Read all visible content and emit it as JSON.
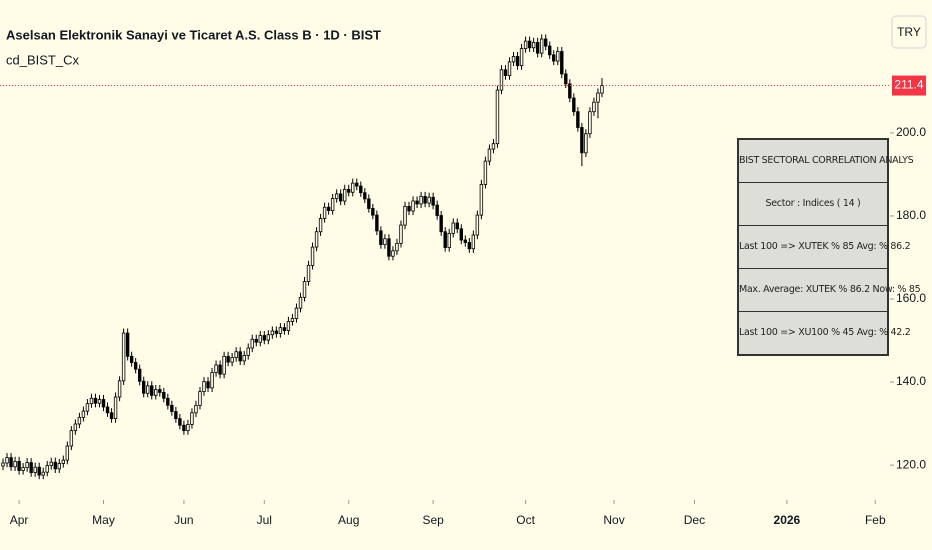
{
  "chart_data": {
    "type": "candlestick",
    "title": "Aselsan Elektronik Sanayi ve Ticaret A.S. Class B · 1D · BIST",
    "indicator": "cd_BIST_Cx",
    "currency": "TRY",
    "last_price": 211.4,
    "up_color": "#fffde8",
    "down_color": "#000000",
    "wick_color": "#000000",
    "price_line_color": "#f23645",
    "ylim": [
      111.6,
      232.0
    ],
    "yticks": [
      {
        "value": 120,
        "label": "120.0"
      },
      {
        "value": 140,
        "label": "140.0"
      },
      {
        "value": 160,
        "label": "160.0"
      },
      {
        "value": 180,
        "label": "180.0"
      },
      {
        "value": 200,
        "label": "200.0"
      }
    ],
    "xlim": [
      -0.75,
      220.65
    ],
    "xticks": [
      {
        "value": 4,
        "label": "Apr"
      },
      {
        "value": 25,
        "label": "May"
      },
      {
        "value": 45,
        "label": "Jun"
      },
      {
        "value": 65,
        "label": "Jul"
      },
      {
        "value": 86,
        "label": "Aug"
      },
      {
        "value": 107,
        "label": "Sep"
      },
      {
        "value": 130,
        "label": "Oct"
      },
      {
        "value": 152,
        "label": "Nov"
      },
      {
        "value": 172,
        "label": "Dec"
      },
      {
        "value": 195,
        "label": "2026"
      },
      {
        "value": 217,
        "label": "Feb"
      }
    ],
    "ohlc": [
      [
        119.8,
        121.6,
        118.8,
        120.5
      ],
      [
        120.5,
        122.9,
        119.5,
        121.8
      ],
      [
        121.8,
        122.9,
        118.6,
        119.6
      ],
      [
        119.6,
        122.0,
        118.6,
        120.9
      ],
      [
        120.9,
        122.0,
        117.7,
        118.7
      ],
      [
        118.7,
        120.5,
        117.7,
        119.4
      ],
      [
        119.4,
        121.7,
        118.4,
        120.6
      ],
      [
        120.6,
        121.7,
        117.2,
        118.2
      ],
      [
        118.2,
        120.6,
        117.2,
        119.5
      ],
      [
        119.5,
        120.6,
        116.6,
        117.6
      ],
      [
        117.6,
        119.4,
        116.6,
        118.3
      ],
      [
        118.3,
        121.0,
        117.3,
        119.9
      ],
      [
        119.9,
        121.8,
        118.9,
        120.7
      ],
      [
        120.7,
        121.8,
        118.1,
        119.1
      ],
      [
        119.1,
        121.5,
        118.1,
        120.4
      ],
      [
        120.4,
        122.3,
        119.4,
        121.2
      ],
      [
        121.2,
        125.7,
        120.2,
        124.6
      ],
      [
        124.6,
        129.4,
        123.6,
        128.3
      ],
      [
        128.3,
        131.0,
        127.3,
        129.9
      ],
      [
        129.9,
        132.6,
        128.9,
        131.5
      ],
      [
        131.5,
        134.1,
        130.5,
        133.0
      ],
      [
        133.0,
        135.9,
        132.0,
        134.8
      ],
      [
        134.8,
        137.2,
        133.8,
        136.1
      ],
      [
        136.1,
        137.2,
        133.9,
        134.9
      ],
      [
        134.9,
        136.9,
        133.9,
        135.8
      ],
      [
        135.8,
        136.9,
        133.0,
        134.0
      ],
      [
        134.0,
        135.1,
        131.6,
        132.6
      ],
      [
        132.6,
        133.7,
        130.2,
        131.2
      ],
      [
        131.2,
        137.5,
        130.2,
        136.4
      ],
      [
        136.4,
        141.4,
        135.4,
        140.3
      ],
      [
        140.3,
        152.9,
        139.3,
        151.8
      ],
      [
        151.8,
        152.9,
        145.2,
        146.2
      ],
      [
        146.2,
        147.3,
        143.7,
        144.7
      ],
      [
        144.7,
        145.8,
        142.1,
        143.1
      ],
      [
        143.1,
        144.2,
        139.2,
        140.2
      ],
      [
        140.2,
        141.3,
        136.3,
        137.3
      ],
      [
        137.3,
        140.2,
        136.3,
        139.1
      ],
      [
        139.1,
        140.2,
        135.8,
        136.8
      ],
      [
        136.8,
        139.3,
        135.8,
        138.2
      ],
      [
        138.2,
        139.3,
        136.5,
        137.5
      ],
      [
        137.5,
        138.6,
        135.1,
        136.1
      ],
      [
        136.1,
        137.2,
        133.4,
        134.4
      ],
      [
        134.4,
        135.5,
        131.9,
        132.9
      ],
      [
        132.9,
        134.0,
        130.2,
        131.2
      ],
      [
        131.2,
        132.3,
        128.6,
        129.6
      ],
      [
        129.6,
        130.7,
        127.3,
        128.3
      ],
      [
        128.3,
        130.9,
        127.3,
        129.8
      ],
      [
        129.8,
        133.7,
        128.8,
        132.6
      ],
      [
        132.6,
        135.5,
        131.6,
        134.4
      ],
      [
        134.4,
        138.8,
        133.4,
        137.7
      ],
      [
        137.7,
        141.2,
        136.7,
        140.1
      ],
      [
        140.1,
        141.2,
        137.6,
        138.6
      ],
      [
        138.6,
        143.4,
        137.6,
        142.3
      ],
      [
        142.3,
        145.2,
        141.3,
        144.1
      ],
      [
        144.1,
        145.2,
        140.9,
        141.9
      ],
      [
        141.9,
        147.3,
        140.9,
        146.2
      ],
      [
        146.2,
        147.3,
        143.8,
        144.8
      ],
      [
        144.8,
        147.0,
        143.8,
        145.9
      ],
      [
        145.9,
        148.4,
        144.9,
        147.3
      ],
      [
        147.3,
        148.4,
        144.1,
        145.1
      ],
      [
        145.1,
        147.5,
        144.1,
        146.4
      ],
      [
        146.4,
        149.3,
        145.4,
        148.2
      ],
      [
        148.2,
        151.4,
        147.2,
        150.3
      ],
      [
        150.3,
        151.4,
        148.6,
        149.6
      ],
      [
        149.6,
        152.3,
        148.6,
        151.2
      ],
      [
        151.2,
        152.3,
        149.1,
        150.1
      ],
      [
        150.1,
        152.5,
        149.1,
        151.4
      ],
      [
        151.4,
        153.4,
        150.4,
        152.3
      ],
      [
        152.3,
        153.4,
        150.7,
        151.7
      ],
      [
        151.7,
        154.2,
        150.7,
        153.1
      ],
      [
        153.1,
        154.2,
        151.4,
        152.4
      ],
      [
        152.4,
        155.7,
        151.4,
        154.6
      ],
      [
        154.6,
        156.4,
        153.6,
        155.3
      ],
      [
        155.3,
        158.9,
        154.3,
        157.8
      ],
      [
        157.8,
        161.5,
        156.8,
        160.4
      ],
      [
        160.4,
        165.3,
        159.4,
        164.2
      ],
      [
        164.2,
        169.2,
        163.2,
        168.1
      ],
      [
        168.1,
        173.6,
        167.1,
        172.5
      ],
      [
        172.5,
        177.3,
        171.5,
        176.2
      ],
      [
        176.2,
        180.5,
        175.2,
        179.4
      ],
      [
        179.4,
        183.2,
        178.4,
        182.1
      ],
      [
        182.1,
        183.2,
        180.3,
        181.3
      ],
      [
        181.3,
        185.3,
        180.3,
        184.2
      ],
      [
        184.2,
        186.4,
        183.2,
        185.3
      ],
      [
        185.3,
        186.4,
        182.6,
        183.6
      ],
      [
        183.6,
        187.5,
        182.6,
        186.4
      ],
      [
        186.4,
        187.5,
        184.7,
        185.7
      ],
      [
        185.7,
        189.0,
        184.7,
        187.9
      ],
      [
        187.9,
        189.0,
        186.2,
        187.2
      ],
      [
        187.2,
        188.3,
        184.6,
        185.6
      ],
      [
        185.6,
        186.7,
        183.1,
        184.1
      ],
      [
        184.1,
        185.2,
        180.8,
        181.8
      ],
      [
        181.8,
        182.9,
        179.2,
        180.2
      ],
      [
        180.2,
        181.3,
        175.4,
        176.4
      ],
      [
        176.4,
        177.5,
        172.1,
        173.1
      ],
      [
        173.1,
        175.6,
        172.1,
        174.5
      ],
      [
        174.5,
        175.6,
        169.3,
        170.3
      ],
      [
        170.3,
        172.7,
        169.3,
        171.6
      ],
      [
        171.6,
        174.5,
        170.6,
        173.4
      ],
      [
        173.4,
        178.9,
        172.4,
        177.8
      ],
      [
        177.8,
        183.4,
        176.8,
        182.3
      ],
      [
        182.3,
        183.4,
        180.2,
        181.2
      ],
      [
        181.2,
        184.7,
        180.2,
        183.6
      ],
      [
        183.6,
        184.7,
        181.9,
        182.9
      ],
      [
        182.9,
        185.8,
        181.9,
        184.7
      ],
      [
        184.7,
        185.8,
        182.1,
        183.1
      ],
      [
        183.1,
        185.6,
        182.1,
        184.5
      ],
      [
        184.5,
        185.6,
        181.6,
        182.6
      ],
      [
        182.6,
        183.7,
        179.1,
        180.1
      ],
      [
        180.1,
        181.2,
        175.2,
        176.2
      ],
      [
        176.2,
        177.3,
        171.4,
        172.4
      ],
      [
        172.4,
        176.9,
        171.4,
        175.8
      ],
      [
        175.8,
        179.4,
        174.8,
        178.3
      ],
      [
        178.3,
        179.4,
        175.9,
        176.9
      ],
      [
        176.9,
        178.0,
        173.2,
        174.2
      ],
      [
        174.2,
        175.3,
        172.6,
        173.6
      ],
      [
        173.6,
        174.7,
        171.1,
        172.1
      ],
      [
        172.1,
        176.5,
        171.1,
        175.4
      ],
      [
        175.4,
        181.3,
        174.4,
        180.2
      ],
      [
        180.2,
        188.7,
        179.2,
        187.6
      ],
      [
        187.6,
        194.3,
        186.6,
        193.2
      ],
      [
        193.2,
        197.2,
        192.2,
        196.1
      ],
      [
        196.1,
        198.5,
        195.1,
        197.4
      ],
      [
        197.4,
        211.4,
        196.4,
        210.3
      ],
      [
        210.3,
        216.3,
        209.3,
        215.2
      ],
      [
        215.2,
        216.3,
        212.8,
        213.8
      ],
      [
        213.8,
        218.2,
        212.8,
        217.1
      ],
      [
        217.1,
        219.5,
        216.1,
        218.4
      ],
      [
        218.4,
        219.5,
        215.2,
        216.2
      ],
      [
        216.2,
        221.4,
        215.2,
        220.3
      ],
      [
        220.3,
        223.2,
        219.3,
        222.1
      ],
      [
        222.1,
        223.2,
        219.5,
        220.5
      ],
      [
        220.5,
        222.9,
        219.5,
        221.8
      ],
      [
        221.8,
        222.9,
        218.2,
        219.2
      ],
      [
        219.2,
        223.7,
        218.2,
        222.6
      ],
      [
        222.6,
        223.7,
        219.9,
        220.9
      ],
      [
        220.9,
        222.0,
        217.8,
        218.8
      ],
      [
        218.8,
        219.9,
        216.3,
        217.3
      ],
      [
        217.3,
        220.7,
        216.3,
        219.6
      ],
      [
        219.6,
        220.7,
        213.2,
        214.2
      ],
      [
        214.2,
        215.3,
        210.8,
        211.8
      ],
      [
        211.8,
        212.9,
        207.4,
        208.4
      ],
      [
        208.4,
        209.5,
        204.1,
        205.1
      ],
      [
        205.1,
        206.2,
        200.3,
        201.3
      ],
      [
        201.3,
        202.4,
        192.0,
        195.2
      ],
      [
        195.2,
        200.9,
        194.2,
        199.8
      ],
      [
        199.8,
        206.2,
        198.8,
        205.1
      ],
      [
        205.1,
        208.5,
        204.1,
        207.4
      ],
      [
        207.4,
        210.7,
        203.5,
        209.6
      ],
      [
        209.6,
        213.2,
        208.6,
        211.4
      ]
    ]
  },
  "table": {
    "title": "BIST SECTORAL CORRELATION ANALYS",
    "rows": [
      "Sector : Indices ( 14 )",
      "Last 100 => XUTEK  % 85 Avg:  % 86.2",
      "Max. Average: XUTEK  % 86.2 Now:  % 85",
      "Last 100 => XU100  % 45 Avg:  % 42.2"
    ]
  }
}
